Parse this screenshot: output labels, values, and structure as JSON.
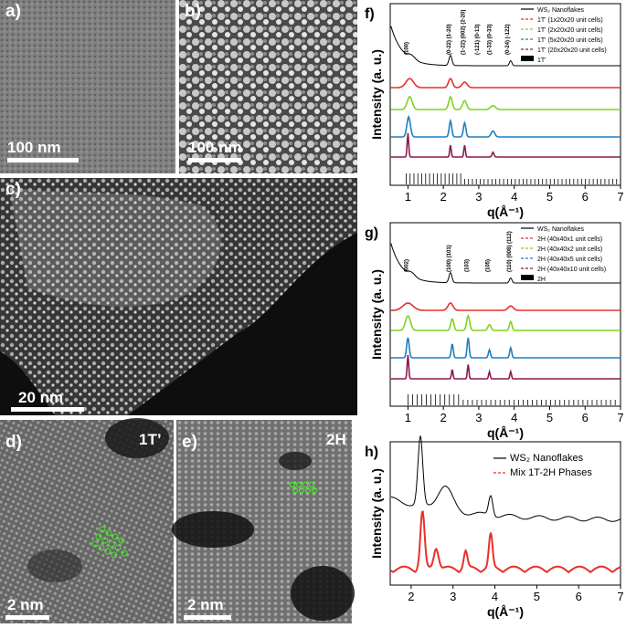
{
  "panels": {
    "a": {
      "label": "a)",
      "scale": "100 nm"
    },
    "b": {
      "label": "b)",
      "scale": "100 nm"
    },
    "c": {
      "label": "c)",
      "scale": "20 nm"
    },
    "d": {
      "label": "d)",
      "scale": "2 nm",
      "phase": "1T’"
    },
    "e": {
      "label": "e)",
      "scale": "2 nm",
      "phase": "2H"
    }
  },
  "chart_data": [
    {
      "panel": "f)",
      "type": "line",
      "xlabel": "q(Å⁻¹)",
      "ylabel": "Intensity (a. u.)",
      "xlim": [
        0.5,
        7
      ],
      "xticks": [
        1,
        2,
        3,
        4,
        5,
        6,
        7
      ],
      "legend_position": "top-right",
      "series": [
        {
          "name": "WS₂ Nanoflakes",
          "color": "#000000"
        },
        {
          "name": "1T' (1x20x20 unit cells)",
          "color": "#e8302c"
        },
        {
          "name": "1T' (2x20x20 unit cells)",
          "color": "#7ed321"
        },
        {
          "name": "1T' (5x20x20 unit cells)",
          "color": "#1f7fbf"
        },
        {
          "name": "1T' (20x20x20 unit cells)",
          "color": "#8a1a4b"
        },
        {
          "name": "1T'",
          "color": "#000000"
        }
      ],
      "peak_labels": [
        {
          "text": "(100)",
          "q": 1.0
        },
        {
          "text": "(0-22) (1-20)",
          "q": 2.2
        },
        {
          "text": "(1-22) (002) (2-20)",
          "q": 2.6
        },
        {
          "text": "(-121) (0-13)",
          "q": 3.0
        },
        {
          "text": "(1-33) (0-33)",
          "q": 3.35
        },
        {
          "text": "(0-24) (-122)",
          "q": 3.85
        }
      ]
    },
    {
      "panel": "g)",
      "type": "line",
      "xlabel": "q(Å⁻¹)",
      "ylabel": "Intensity (a. u.)",
      "xlim": [
        0.5,
        7
      ],
      "xticks": [
        1,
        2,
        3,
        4,
        5,
        6,
        7
      ],
      "legend_position": "top-right",
      "series": [
        {
          "name": "WS₂ Nanoflakes",
          "color": "#000000"
        },
        {
          "name": "2H (40x40x1 unit cells)",
          "color": "#e8302c"
        },
        {
          "name": "2H (40x40x2 unit cells)",
          "color": "#7ed321"
        },
        {
          "name": "2H (40x40x5 unit cells)",
          "color": "#1f7fbf"
        },
        {
          "name": "2H (40x40x10 unit cells)",
          "color": "#8a1a4b"
        },
        {
          "name": "2H",
          "color": "#000000"
        }
      ],
      "peak_labels": [
        {
          "text": "(002)",
          "q": 1.0
        },
        {
          "text": "(100) (101)",
          "q": 2.2
        },
        {
          "text": "(103)",
          "q": 2.7
        },
        {
          "text": "(105)",
          "q": 3.3
        },
        {
          "text": "(110) (008) (112)",
          "q": 3.9
        }
      ]
    },
    {
      "panel": "h)",
      "type": "line",
      "xlabel": "q(Å⁻¹)",
      "ylabel": "Intensity (a. u.)",
      "xlim": [
        1.5,
        7
      ],
      "xticks": [
        2,
        3,
        4,
        5,
        6,
        7
      ],
      "legend_position": "top-right",
      "series": [
        {
          "name": "WS₂ Nanoflakes",
          "color": "#000000"
        },
        {
          "name": "Mix 1T-2H Phases",
          "color": "#e8302c"
        }
      ]
    }
  ]
}
